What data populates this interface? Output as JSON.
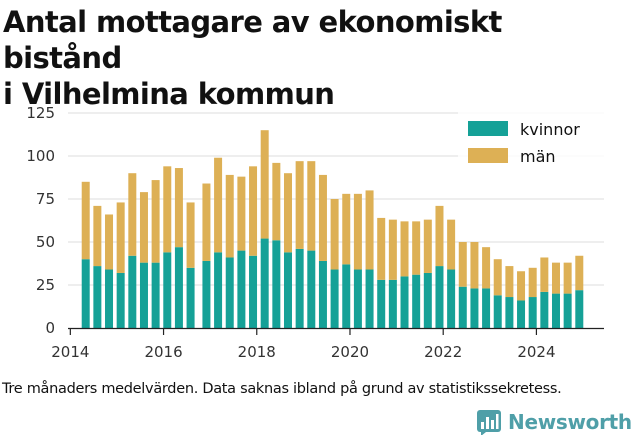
{
  "title_line1": "Antal mottagare av ekonomiskt bistånd",
  "title_line2": "i Vilhelmina kommun",
  "footnote": "Tre månaders medelvärden. Data saknas ibland på grund av statistikssekretess.",
  "brand": "Newsworthy",
  "colors": {
    "kvinnor": "#15a197",
    "man": "#ddb055",
    "brand": "#4f9fa8",
    "grid": "#dddddd"
  },
  "chart_data": {
    "type": "bar",
    "stacked": true,
    "ylim": [
      0,
      125
    ],
    "yticks": [
      0,
      25,
      50,
      75,
      100,
      125
    ],
    "xlim": [
      2013.95,
      2025.45
    ],
    "xticks": [
      2014,
      2016,
      2018,
      2020,
      2022,
      2024
    ],
    "legend_position": "top-right",
    "x": [
      2014.33,
      2014.58,
      2014.83,
      2015.08,
      2015.33,
      2015.58,
      2015.83,
      2016.08,
      2016.33,
      2016.58,
      2016.92,
      2017.17,
      2017.42,
      2017.67,
      2017.92,
      2018.17,
      2018.42,
      2018.67,
      2018.92,
      2019.17,
      2019.42,
      2019.67,
      2019.92,
      2020.17,
      2020.42,
      2020.67,
      2020.92,
      2021.17,
      2021.42,
      2021.67,
      2021.92,
      2022.17,
      2022.42,
      2022.67,
      2022.92,
      2023.17,
      2023.42,
      2023.67,
      2023.92,
      2024.17,
      2024.42,
      2024.67,
      2024.92
    ],
    "series": [
      {
        "name": "kvinnor",
        "values": [
          40,
          36,
          34,
          32,
          42,
          38,
          38,
          44,
          47,
          35,
          39,
          44,
          41,
          45,
          42,
          52,
          51,
          44,
          46,
          45,
          39,
          34,
          37,
          34,
          34,
          28,
          28,
          30,
          31,
          32,
          36,
          34,
          24,
          23,
          23,
          19,
          18,
          16,
          18,
          21,
          20,
          20,
          22
        ]
      },
      {
        "name": "män",
        "values": [
          45,
          35,
          32,
          41,
          48,
          41,
          48,
          50,
          46,
          38,
          45,
          55,
          48,
          43,
          52,
          63,
          45,
          46,
          51,
          52,
          50,
          41,
          41,
          44,
          46,
          36,
          35,
          32,
          31,
          31,
          35,
          29,
          26,
          27,
          24,
          21,
          18,
          17,
          17,
          20,
          18,
          18,
          20
        ]
      }
    ]
  }
}
